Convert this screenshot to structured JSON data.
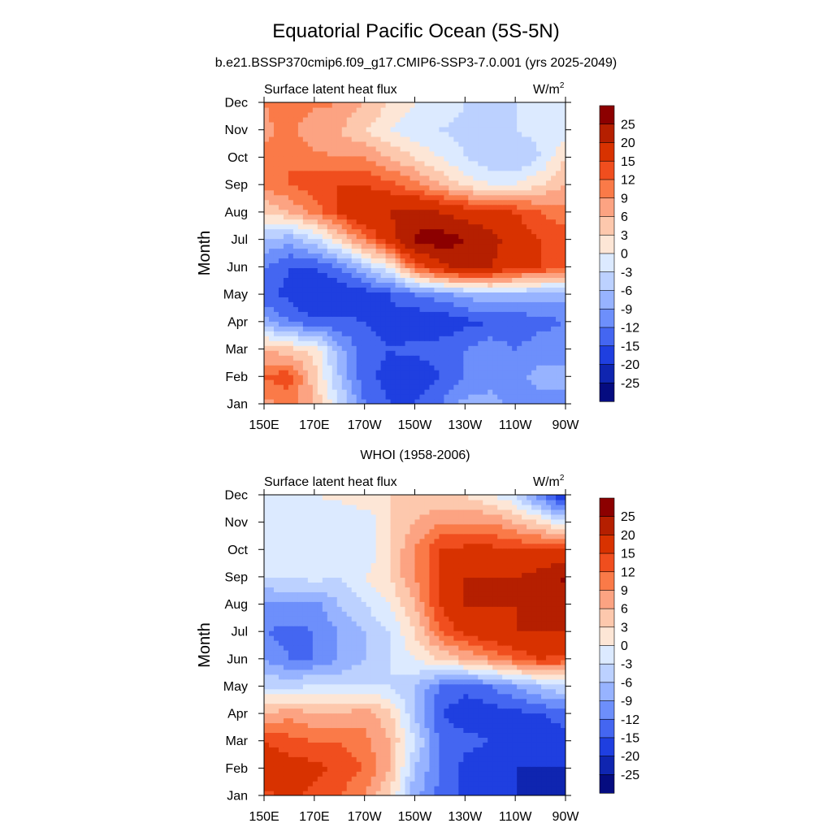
{
  "title": "Equatorial Pacific Ocean (5S-5N)",
  "subtitle": "b.e21.BSSP370cmip6.f09_g17.CMIP6-SSP3-7.0.001 (yrs 2025-2049)",
  "colorbar": {
    "labels": [
      "25",
      "20",
      "15",
      "12",
      "9",
      "6",
      "3",
      "0",
      "-3",
      "-6",
      "-9",
      "-12",
      "-15",
      "-20",
      "-25"
    ],
    "colors": [
      "#8c0000",
      "#b51f00",
      "#d83200",
      "#f04e1e",
      "#fa7a48",
      "#fca382",
      "#fdc8ad",
      "#fde6d6",
      "#dceaff",
      "#bcd1ff",
      "#97b3ff",
      "#6d8ffb",
      "#4466f1",
      "#1f3fe0",
      "#0f25b0",
      "#050c80"
    ]
  },
  "chart_data": [
    {
      "type": "heatmap",
      "panel_title": "",
      "left_label": "Surface latent heat flux",
      "units_label": "W/m",
      "units_superscript": "2",
      "ylabel": "Month",
      "xlabel": "",
      "x_ticks": [
        "150E",
        "170E",
        "170W",
        "150W",
        "130W",
        "110W",
        "90W"
      ],
      "y_ticks": [
        "Jan",
        "Feb",
        "Mar",
        "Apr",
        "May",
        "Jun",
        "Jul",
        "Aug",
        "Sep",
        "Oct",
        "Nov",
        "Dec"
      ],
      "x_lon": [
        150,
        160,
        170,
        180,
        190,
        200,
        210,
        220,
        230,
        240,
        250,
        260,
        270
      ],
      "months": [
        "Jan",
        "Feb",
        "Mar",
        "Apr",
        "May",
        "Jun",
        "Jul",
        "Aug",
        "Sep",
        "Oct",
        "Nov",
        "Dec"
      ],
      "values": [
        [
          8,
          10,
          6,
          -3,
          -12,
          -15,
          -15,
          -12,
          -8,
          -8,
          -10,
          -10,
          -10
        ],
        [
          12,
          14,
          4,
          -6,
          -14,
          -16,
          -18,
          -15,
          -12,
          -10,
          -10,
          -8,
          -8
        ],
        [
          6,
          4,
          2,
          -8,
          -14,
          -15,
          -14,
          -13,
          -12,
          -10,
          -12,
          -10,
          -10
        ],
        [
          -8,
          -12,
          -14,
          -14,
          -15,
          -16,
          -18,
          -18,
          -16,
          -15,
          -15,
          -13,
          -12
        ],
        [
          -14,
          -16,
          -20,
          -18,
          -17,
          -15,
          -12,
          -10,
          -8,
          -6,
          -6,
          -8,
          -8
        ],
        [
          -12,
          -15,
          -15,
          -12,
          -6,
          0,
          12,
          18,
          22,
          20,
          16,
          15,
          14
        ],
        [
          -6,
          -8,
          -4,
          3,
          10,
          18,
          26,
          28,
          25,
          22,
          18,
          15,
          14
        ],
        [
          3,
          6,
          10,
          15,
          20,
          20,
          22,
          20,
          18,
          16,
          15,
          12,
          10
        ],
        [
          10,
          12,
          14,
          15,
          15,
          13,
          10,
          6,
          2,
          0,
          0,
          3,
          6
        ],
        [
          10,
          12,
          10,
          9,
          9,
          6,
          3,
          0,
          -3,
          -5,
          -6,
          -3,
          3
        ],
        [
          8,
          10,
          6,
          6,
          3,
          0,
          -2,
          -3,
          -4,
          -4,
          -3,
          -2,
          -2
        ],
        [
          9,
          12,
          10,
          9,
          6,
          3,
          0,
          -1,
          -3,
          -4,
          -3,
          -2,
          -2
        ]
      ],
      "clim": [
        -25,
        25
      ]
    },
    {
      "type": "heatmap",
      "panel_title": "WHOI (1958-2006)",
      "left_label": "Surface latent heat flux",
      "units_label": "W/m",
      "units_superscript": "2",
      "ylabel": "Month",
      "xlabel": "",
      "x_ticks": [
        "150E",
        "170E",
        "170W",
        "150W",
        "130W",
        "110W",
        "90W"
      ],
      "y_ticks": [
        "Jan",
        "Feb",
        "Mar",
        "Apr",
        "May",
        "Jun",
        "Jul",
        "Aug",
        "Sep",
        "Oct",
        "Nov",
        "Dec"
      ],
      "x_lon": [
        150,
        160,
        170,
        180,
        190,
        200,
        210,
        220,
        230,
        240,
        250,
        260,
        270
      ],
      "months": [
        "Jan",
        "Feb",
        "Mar",
        "Apr",
        "May",
        "Jun",
        "Jul",
        "Aug",
        "Sep",
        "Oct",
        "Nov",
        "Dec"
      ],
      "values": [
        [
          14,
          16,
          14,
          12,
          9,
          3,
          -8,
          -13,
          -16,
          -18,
          -20,
          -22,
          -25
        ],
        [
          18,
          17,
          16,
          14,
          12,
          6,
          -6,
          -12,
          -16,
          -18,
          -20,
          -20,
          -20
        ],
        [
          15,
          13,
          12,
          12,
          10,
          6,
          -3,
          -12,
          -14,
          -15,
          -17,
          -17,
          -16
        ],
        [
          6,
          8,
          6,
          6,
          8,
          4,
          -6,
          -15,
          -17,
          -17,
          -16,
          -15,
          -14
        ],
        [
          -3,
          -4,
          -2,
          -3,
          -3,
          -3,
          -6,
          -12,
          -14,
          -12,
          -9,
          -6,
          -3
        ],
        [
          -9,
          -12,
          -12,
          -9,
          -6,
          -3,
          0,
          3,
          6,
          9,
          12,
          15,
          14
        ],
        [
          -12,
          -13,
          -12,
          -9,
          -6,
          -3,
          3,
          12,
          16,
          18,
          20,
          20,
          20
        ],
        [
          -10,
          -9,
          -10,
          -6,
          -3,
          0,
          6,
          15,
          20,
          20,
          20,
          20,
          20
        ],
        [
          -3,
          -3,
          -2,
          -3,
          0,
          3,
          9,
          15,
          20,
          20,
          20,
          22,
          26
        ],
        [
          -3,
          -2,
          -3,
          -3,
          -3,
          3,
          9,
          15,
          16,
          16,
          15,
          15,
          15
        ],
        [
          -3,
          -3,
          -3,
          -3,
          -3,
          3,
          6,
          9,
          9,
          9,
          6,
          3,
          -3
        ],
        [
          -2,
          -2,
          0,
          1,
          3,
          3,
          3,
          3,
          3,
          0,
          -3,
          -12,
          -20
        ]
      ],
      "clim": [
        -25,
        25
      ]
    }
  ]
}
